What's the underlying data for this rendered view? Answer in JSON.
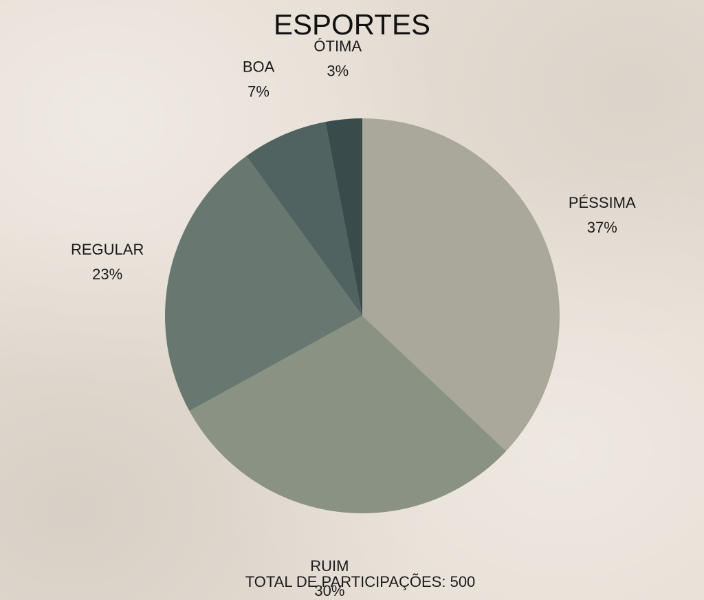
{
  "chart_data": {
    "type": "pie",
    "title": "ESPORTES",
    "footer": "TOTAL DE PARTICIPAÇÕES: 500",
    "slices": [
      {
        "name": "PÉSSIMA",
        "value": 37,
        "label": "37%",
        "color": "#a9a89b"
      },
      {
        "name": "RUIM",
        "value": 30,
        "label": "30%",
        "color": "#8a9283"
      },
      {
        "name": "REGULAR",
        "value": 23,
        "label": "23%",
        "color": "#687870"
      },
      {
        "name": "BOA",
        "value": 7,
        "label": "7%",
        "color": "#516360"
      },
      {
        "name": "ÓTIMA",
        "value": 3,
        "label": "3%",
        "color": "#3a4b4b"
      }
    ]
  }
}
